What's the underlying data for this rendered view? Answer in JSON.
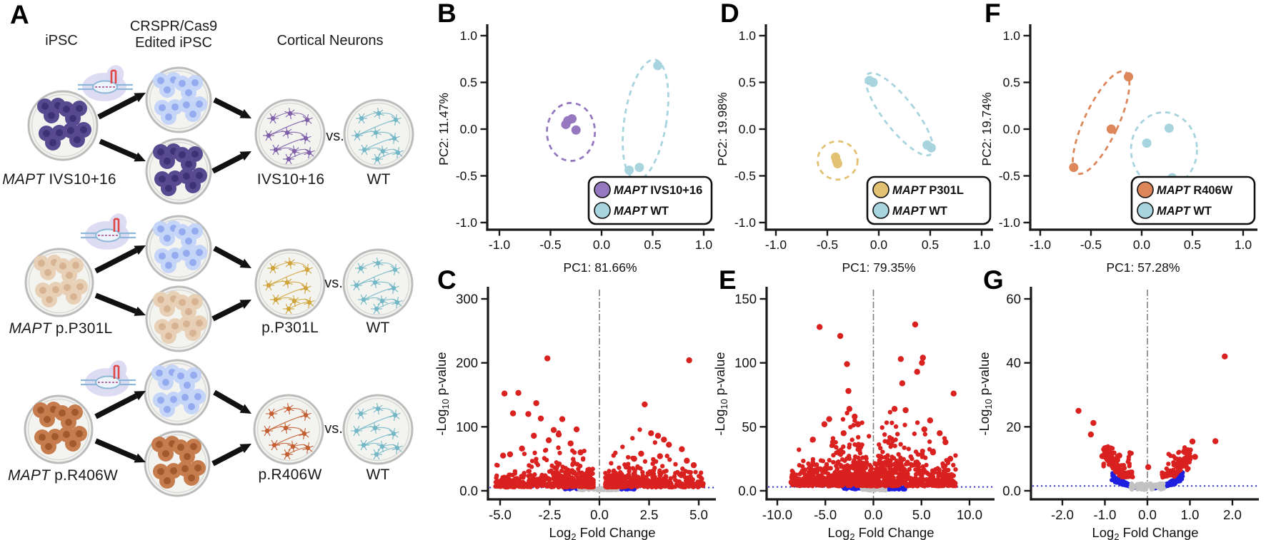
{
  "panelA": {
    "label": "A",
    "headers": {
      "ipsc": "iPSC",
      "crispr_line1": "CRSPR/Cas9",
      "crispr_line2": "Edited iPSC",
      "cortical": "Cortical Neurons"
    },
    "rows": [
      {
        "gene": "MAPT",
        "rest": " IVS10+16",
        "neuron_label": "IVS10+16",
        "vs": "vs.",
        "wt_label": "WT"
      },
      {
        "gene": "MAPT",
        "rest": " p.P301L",
        "neuron_label": "p.P301L",
        "vs": "vs.",
        "wt_label": "WT"
      },
      {
        "gene": "MAPT",
        "rest": " p.R406W",
        "neuron_label": "p.R406W",
        "vs": "vs.",
        "wt_label": "WT"
      }
    ],
    "palette": {
      "dish_fill": "#f3f3f0",
      "dish_ring": "#bcbcbc",
      "dish_ring_inner": "#d9d9d7",
      "cells_dark": {
        "body": "#584a90",
        "nuc": "#3d3274"
      },
      "cells_light": {
        "body": "#c5d5f8",
        "nuc": "#94abef"
      },
      "cells_tan": {
        "body": "#e7d0b5",
        "nuc": "#d7b392"
      },
      "cells_brown": {
        "body": "#c67c4c",
        "nuc": "#a05a2e"
      },
      "neurons_mut": [
        "#7e5fa8",
        "#cfa43b",
        "#c35f33"
      ],
      "neurons_wt": "#74b7c6",
      "arrow": "#111111",
      "crispr_blob": "#d9d8f2",
      "crispr_dna": "#8fb8d8",
      "crispr_guide": "#e04848",
      "crispr_target": "#b05c9e"
    }
  },
  "chart_data": [
    {
      "panel": "B",
      "type": "scatter",
      "xlabel": "PC1: 81.66%",
      "ylabel": "PC2: 11.47%",
      "xtick_labels": [
        "-1.0",
        "-0.5",
        "0.0",
        "0.5",
        "1.0"
      ],
      "ytick_labels": [
        "1.0",
        "0.5",
        "0.0",
        "-0.5",
        "-1.0"
      ],
      "xlim": [
        -1.1,
        1.1
      ],
      "ylim": [
        -1.1,
        1.1
      ],
      "legend_position": "bottom-right",
      "grid": false,
      "series": [
        {
          "name": "MAPT IVS10+16",
          "gene": "MAPT",
          "rest": "IVS10+16",
          "color": "#9678c0",
          "points": [
            [
              -0.33,
              0.09
            ],
            [
              -0.29,
              0.11
            ],
            [
              -0.35,
              0.05
            ],
            [
              -0.25,
              -0.01
            ]
          ],
          "ellipse": {
            "cx": -0.3,
            "cy": -0.03,
            "rx": 0.24,
            "ry": 0.31,
            "rot": 0
          }
        },
        {
          "name": "MAPT WT",
          "gene": "MAPT",
          "rest": "WT",
          "color": "#a7d4de",
          "points": [
            [
              0.55,
              0.68
            ],
            [
              0.27,
              -0.44
            ],
            [
              0.37,
              -0.41
            ]
          ],
          "ellipse": {
            "cx": 0.43,
            "cy": 0.1,
            "rx": 0.21,
            "ry": 0.65,
            "rot": 9
          }
        }
      ]
    },
    {
      "panel": "C",
      "type": "volcano",
      "xlabel": "Log_2_ Fold Change",
      "ylabel": "-Log_10_ p-value",
      "xtick_vals": [
        -5,
        -2.5,
        0,
        2.5,
        5
      ],
      "xtick_labels": [
        "-5.0",
        "-2.5",
        "0.0",
        "2.5",
        "5.0"
      ],
      "ytick_vals": [
        0,
        100,
        200,
        300
      ],
      "ytick_labels": [
        "0.0",
        "100",
        "200",
        "300"
      ],
      "ytop": 300,
      "threshold_y": 5,
      "colors": {
        "sig": "#d92120",
        "mid": "#1e1ee0",
        "ns": "#c2c2c2",
        "threshold": "#3b3bc8",
        "zeroline": "#808080"
      },
      "outliers": [
        [
          -2.62,
          207
        ],
        [
          -4.78,
          152
        ],
        [
          -4.08,
          153
        ],
        [
          -3.18,
          137
        ],
        [
          -4.35,
          121
        ],
        [
          -3.58,
          120
        ],
        [
          -2.95,
          113
        ],
        [
          -1.87,
          112
        ],
        [
          -1.15,
          96
        ],
        [
          -2.3,
          95
        ],
        [
          -2.05,
          88
        ],
        [
          -3.3,
          86
        ],
        [
          -2.55,
          79
        ],
        [
          -1.45,
          74
        ],
        [
          -3.9,
          66
        ],
        [
          -0.95,
          60
        ],
        [
          -4.5,
          57
        ],
        [
          -4.85,
          55
        ],
        [
          4.52,
          204
        ],
        [
          2.28,
          135
        ],
        [
          2.6,
          90
        ],
        [
          2.95,
          86
        ],
        [
          3.25,
          80
        ],
        [
          3.5,
          72
        ],
        [
          4.15,
          65
        ],
        [
          2.1,
          58
        ],
        [
          3.05,
          54
        ],
        [
          1.75,
          50
        ],
        [
          4.4,
          47
        ],
        [
          4.75,
          40
        ]
      ],
      "cloud": {
        "seed": 11,
        "n": 1000,
        "x_min": 0.3,
        "x_max": 5.25,
        "y_base": 5.5,
        "h_scale": 13,
        "peak": 2.4,
        "edge_fall": 1.6
      },
      "blue_band": {
        "n": 135,
        "x0": 0.5,
        "x1": 1.78,
        "y0": 2.2,
        "y1": 6.2
      },
      "gray_band": {
        "n": 85,
        "x0": -1.02,
        "x1": 1.02,
        "y0": 0.8,
        "y1": 4.4
      }
    },
    {
      "panel": "D",
      "type": "scatter",
      "xlabel": "PC1: 79.35%",
      "ylabel": "PC2: 19.98%",
      "xtick_labels": [
        "-1.0",
        "-0.5",
        "0.0",
        "0.5",
        "1.0"
      ],
      "ytick_labels": [
        "1.0",
        "0.5",
        "0.0",
        "-0.5",
        "-1.0"
      ],
      "xlim": [
        -1.1,
        1.1
      ],
      "ylim": [
        -1.1,
        1.1
      ],
      "legend_position": "bottom-right",
      "grid": false,
      "series": [
        {
          "name": "MAPT P301L",
          "gene": "MAPT",
          "rest": "P301L",
          "color": "#e2c272",
          "points": [
            [
              -0.42,
              -0.3
            ],
            [
              -0.41,
              -0.34
            ],
            [
              -0.4,
              -0.37
            ]
          ],
          "ellipse": {
            "cx": -0.4,
            "cy": -0.335,
            "rx": 0.2,
            "ry": 0.205,
            "rot": 0
          }
        },
        {
          "name": "MAPT WT",
          "gene": "MAPT",
          "rest": "WT",
          "color": "#a7d4de",
          "points": [
            [
              -0.09,
              0.52
            ],
            [
              -0.055,
              0.5
            ],
            [
              0.47,
              -0.17
            ],
            [
              0.51,
              -0.2
            ]
          ],
          "ellipse": {
            "cx": 0.2,
            "cy": 0.16,
            "rx": 0.155,
            "ry": 0.545,
            "rot": -38
          }
        }
      ]
    },
    {
      "panel": "E",
      "type": "volcano",
      "xlabel": "Log_2_ Fold Change",
      "ylabel": "-Log_10_ p-value",
      "xtick_vals": [
        -10,
        -5,
        0,
        5,
        10
      ],
      "xtick_labels": [
        "-10.0",
        "-5.0",
        "0.0",
        "5.0",
        "10.0"
      ],
      "ytick_vals": [
        0,
        50,
        100,
        150
      ],
      "ytick_labels": [
        "0.0",
        "50",
        "100",
        "150"
      ],
      "ytop": 150,
      "threshold_y": 3,
      "colors": {
        "sig": "#d92120",
        "mid": "#1e1ee0",
        "ns": "#c2c2c2",
        "threshold": "#3b3bc8",
        "zeroline": "#808080"
      },
      "outliers": [
        [
          -5.6,
          128
        ],
        [
          -3.45,
          121
        ],
        [
          -2.75,
          99
        ],
        [
          -2.6,
          78
        ],
        [
          -2.5,
          64
        ],
        [
          -1.95,
          58
        ],
        [
          -4.6,
          56
        ],
        [
          -5.1,
          52
        ],
        [
          -3.1,
          45
        ],
        [
          -6.3,
          40
        ],
        [
          -4.2,
          38
        ],
        [
          -1.6,
          52
        ],
        [
          4.35,
          130
        ],
        [
          2.85,
          103
        ],
        [
          5.15,
          104
        ],
        [
          5.05,
          100
        ],
        [
          4.55,
          93
        ],
        [
          3.0,
          84
        ],
        [
          8.35,
          76
        ],
        [
          2.2,
          64
        ],
        [
          3.35,
          63
        ],
        [
          5.9,
          55
        ],
        [
          5.3,
          48
        ],
        [
          6.9,
          45
        ],
        [
          7.5,
          38
        ],
        [
          6.2,
          30
        ],
        [
          8.0,
          25
        ]
      ],
      "cloud": {
        "seed": 23,
        "n": 1150,
        "x_min": 0.15,
        "x_max": 8.6,
        "y_base": 3.6,
        "h_scale": 11,
        "peak": 2.6,
        "edge_fall": 2.0
      },
      "blue_band": {
        "n": 150,
        "x0": 0.35,
        "x1": 3.3,
        "y0": 1.0,
        "y1": 3.4
      },
      "gray_band": {
        "n": 70,
        "x0": -1.25,
        "x1": 1.25,
        "y0": 0.2,
        "y1": 2.4
      }
    },
    {
      "panel": "F",
      "type": "scatter",
      "xlabel": "PC1: 57.28%",
      "ylabel": "PC2: 19.74%",
      "xtick_labels": [
        "-1.0",
        "-0.5",
        "0.0",
        "0.5",
        "1.0"
      ],
      "ytick_labels": [
        "1.0",
        "0.5",
        "0.0",
        "-0.5",
        "-1.0"
      ],
      "xlim": [
        -1.1,
        1.1
      ],
      "ylim": [
        -1.1,
        1.1
      ],
      "legend_position": "bottom-right",
      "grid": false,
      "series": [
        {
          "name": "MAPT R406W",
          "gene": "MAPT",
          "rest": "R406W",
          "color": "#dd8659",
          "points": [
            [
              -0.13,
              0.56
            ],
            [
              -0.3,
              0.0
            ],
            [
              -0.67,
              -0.41
            ]
          ],
          "ellipse": {
            "cx": -0.4,
            "cy": 0.07,
            "rx": 0.17,
            "ry": 0.6,
            "rot": 25
          }
        },
        {
          "name": "MAPT WT",
          "gene": "MAPT",
          "rest": "WT",
          "color": "#a7d4de",
          "points": [
            [
              0.27,
              0.01
            ],
            [
              0.05,
              -0.15
            ],
            [
              0.3,
              -0.52
            ]
          ],
          "ellipse": {
            "cx": 0.22,
            "cy": -0.22,
            "rx": 0.33,
            "ry": 0.4,
            "rot": 0
          }
        }
      ]
    },
    {
      "panel": "G",
      "type": "volcano",
      "xlabel": "Log_2_ Fold Change",
      "ylabel": "-Log_10_ p-value",
      "xtick_vals": [
        -2,
        -1,
        0,
        1,
        2
      ],
      "xtick_labels": [
        "-2.0",
        "-1.0",
        "0.0",
        "1.0",
        "2.0"
      ],
      "ytick_vals": [
        0,
        20,
        40,
        60
      ],
      "ytick_labels": [
        "0.0",
        "20",
        "40",
        "60"
      ],
      "ytop": 60,
      "threshold_y": 1.5,
      "colors": {
        "sig": "#d92120",
        "mid": "#1e1ee0",
        "ns": "#c2c2c2",
        "threshold": "#3b3bc8",
        "zeroline": "#808080"
      },
      "outliers": [
        [
          -1.62,
          25
        ],
        [
          -1.27,
          21.2
        ],
        [
          -1.33,
          17.6
        ],
        [
          -1.06,
          10.8
        ],
        [
          -0.84,
          11.6
        ],
        [
          -0.95,
          10.3
        ],
        [
          -0.66,
          11.0
        ],
        [
          -0.71,
          9.6
        ],
        [
          1.82,
          42
        ],
        [
          1.06,
          15.4
        ],
        [
          1.6,
          15.5
        ],
        [
          1.12,
          10.6
        ],
        [
          0.02,
          7.4
        ],
        [
          0.85,
          9.0
        ],
        [
          0.78,
          8.4
        ],
        [
          0.9,
          7.8
        ]
      ],
      "funnel": {
        "seed": 5,
        "n_red": 270,
        "red_x0": 0.34,
        "red_x1": 1.04,
        "k": 10.5,
        "noise": 2.4,
        "n_blue": 340,
        "blue_x0": 0.13,
        "blue_x1": 0.84,
        "bk": 7.4,
        "n_gray": 90,
        "gray_x": 0.4,
        "gray_y": 2.0
      }
    }
  ]
}
